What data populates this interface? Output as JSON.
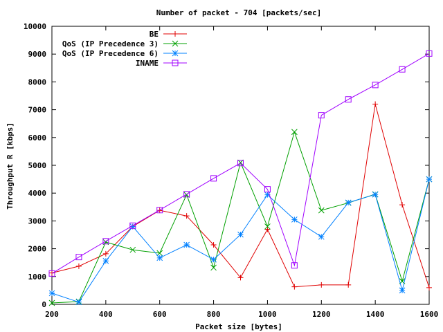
{
  "chart_data": {
    "type": "line",
    "title": "Number of packet - 704 [packets/sec]",
    "xlabel": "Packet size [bytes]",
    "ylabel": "Throughput R [kbps]",
    "xlim": [
      200,
      1600
    ],
    "ylim": [
      0,
      10000
    ],
    "x_ticks": [
      "200",
      "400",
      "600",
      "800",
      "1000",
      "1200",
      "1400",
      "1600"
    ],
    "y_ticks": [
      "0",
      "1000",
      "2000",
      "3000",
      "4000",
      "5000",
      "6000",
      "7000",
      "8000",
      "9000",
      "10000"
    ],
    "grid": false,
    "legend_position": "top-right",
    "x": [
      200,
      300,
      400,
      500,
      600,
      700,
      800,
      900,
      1000,
      1100,
      1200,
      1300,
      1400,
      1500,
      1600
    ],
    "series": [
      {
        "name": "BE",
        "color": "#e00000",
        "marker": "plus",
        "values": [
          1130,
          1370,
          1820,
          2800,
          3380,
          3180,
          2140,
          960,
          2700,
          630,
          700,
          700,
          7200,
          3580,
          600
        ]
      },
      {
        "name": "QoS (IP Precedence 3)",
        "color": "#00a000",
        "marker": "cross",
        "values": [
          50,
          100,
          2240,
          1960,
          1840,
          3940,
          1320,
          5100,
          2800,
          6200,
          3380,
          3650,
          3960,
          830,
          4500
        ]
      },
      {
        "name": "QoS (IP Precedence 6)",
        "color": "#0080ff",
        "marker": "star",
        "values": [
          400,
          80,
          1560,
          2800,
          1670,
          2140,
          1610,
          2510,
          3940,
          3050,
          2430,
          3660,
          3950,
          500,
          4500
        ]
      },
      {
        "name": "INAME",
        "color": "#a000ff",
        "marker": "square",
        "values": [
          1110,
          1700,
          2270,
          2830,
          3390,
          3960,
          4530,
          5080,
          4140,
          1400,
          6800,
          7370,
          7890,
          8450,
          9020
        ]
      }
    ]
  }
}
